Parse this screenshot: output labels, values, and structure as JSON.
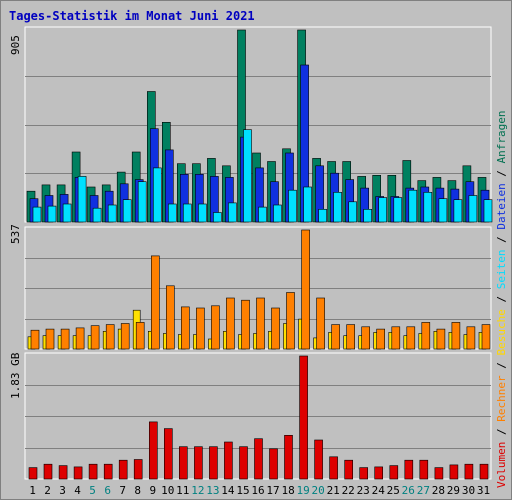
{
  "title": "Tages-Statistik im Monat Juni 2021",
  "legend": [
    {
      "label": "Volumen",
      "color": "#dd0000"
    },
    {
      "label": "Rechner",
      "color": "#ff8000"
    },
    {
      "label": "Besuche",
      "color": "#ffd700"
    },
    {
      "label": "Seiten",
      "color": "#00ddff"
    },
    {
      "label": "Dateien",
      "color": "#1030e0"
    },
    {
      "label": "Anfragen",
      "color": "#007050"
    }
  ],
  "legend_sep": " / ",
  "colors": {
    "anfragen": "#008060",
    "dateien": "#1030e0",
    "seiten": "#00e0ff",
    "besuche": "#ffe000",
    "rechner": "#ff8000",
    "volumen": "#dd0000",
    "weekend": "#008080",
    "grid": "#808080",
    "panel": "#c0c0c0"
  },
  "chart_data": [
    {
      "type": "bar",
      "panel": "top",
      "ymax_label": "905",
      "ylim": [
        0,
        905
      ],
      "categories": [
        "1",
        "2",
        "3",
        "4",
        "5",
        "6",
        "7",
        "8",
        "9",
        "10",
        "11",
        "12",
        "13",
        "14",
        "15",
        "16",
        "17",
        "18",
        "19",
        "20",
        "21",
        "22",
        "23",
        "24",
        "25",
        "26",
        "27",
        "28",
        "29",
        "30",
        "31"
      ],
      "weekend_days": [
        "5",
        "6",
        "12",
        "13",
        "19",
        "20",
        "26",
        "27"
      ],
      "series": [
        {
          "name": "Anfragen",
          "values": [
            145,
            175,
            175,
            330,
            165,
            175,
            235,
            330,
            615,
            470,
            275,
            275,
            300,
            265,
            905,
            325,
            285,
            345,
            905,
            300,
            285,
            285,
            215,
            220,
            220,
            290,
            195,
            210,
            195,
            265,
            210
          ]
        },
        {
          "name": "Dateien",
          "values": [
            110,
            125,
            130,
            210,
            125,
            145,
            180,
            200,
            440,
            340,
            225,
            225,
            215,
            210,
            400,
            255,
            190,
            325,
            740,
            265,
            230,
            200,
            160,
            120,
            120,
            160,
            165,
            160,
            155,
            190,
            150
          ]
        },
        {
          "name": "Seiten",
          "values": [
            70,
            75,
            85,
            215,
            65,
            80,
            105,
            190,
            255,
            85,
            85,
            85,
            45,
            90,
            435,
            70,
            80,
            150,
            165,
            60,
            140,
            95,
            60,
            115,
            115,
            150,
            140,
            110,
            105,
            125,
            105
          ]
        }
      ]
    },
    {
      "type": "bar",
      "panel": "middle",
      "ymax_label": "537",
      "ylim": [
        0,
        537
      ],
      "categories": [
        "1",
        "2",
        "3",
        "4",
        "5",
        "6",
        "7",
        "8",
        "9",
        "10",
        "11",
        "12",
        "13",
        "14",
        "15",
        "16",
        "17",
        "18",
        "19",
        "20",
        "21",
        "22",
        "23",
        "24",
        "25",
        "26",
        "27",
        "28",
        "29",
        "30",
        "31"
      ],
      "series": [
        {
          "name": "Besuche",
          "values": [
            55,
            60,
            60,
            60,
            60,
            80,
            90,
            175,
            80,
            70,
            65,
            65,
            45,
            80,
            65,
            70,
            80,
            115,
            135,
            50,
            75,
            60,
            60,
            75,
            75,
            60,
            70,
            80,
            75,
            65,
            75
          ]
        },
        {
          "name": "Rechner",
          "values": [
            85,
            90,
            90,
            95,
            105,
            110,
            115,
            120,
            420,
            285,
            190,
            185,
            195,
            230,
            220,
            230,
            185,
            255,
            537,
            230,
            110,
            110,
            100,
            90,
            100,
            100,
            120,
            90,
            120,
            100,
            110
          ]
        }
      ]
    },
    {
      "type": "bar",
      "panel": "bottom",
      "ymax_label": "1.83 GB",
      "ylim": [
        0,
        1.83
      ],
      "categories": [
        "1",
        "2",
        "3",
        "4",
        "5",
        "6",
        "7",
        "8",
        "9",
        "10",
        "11",
        "12",
        "13",
        "14",
        "15",
        "16",
        "17",
        "18",
        "19",
        "20",
        "21",
        "22",
        "23",
        "24",
        "25",
        "26",
        "27",
        "28",
        "29",
        "30",
        "31"
      ],
      "series": [
        {
          "name": "Volumen",
          "values": [
            0.17,
            0.22,
            0.2,
            0.18,
            0.22,
            0.22,
            0.28,
            0.29,
            0.85,
            0.75,
            0.48,
            0.48,
            0.48,
            0.55,
            0.48,
            0.6,
            0.45,
            0.65,
            1.83,
            0.58,
            0.33,
            0.28,
            0.17,
            0.18,
            0.2,
            0.28,
            0.28,
            0.17,
            0.21,
            0.22,
            0.22
          ]
        }
      ]
    }
  ]
}
